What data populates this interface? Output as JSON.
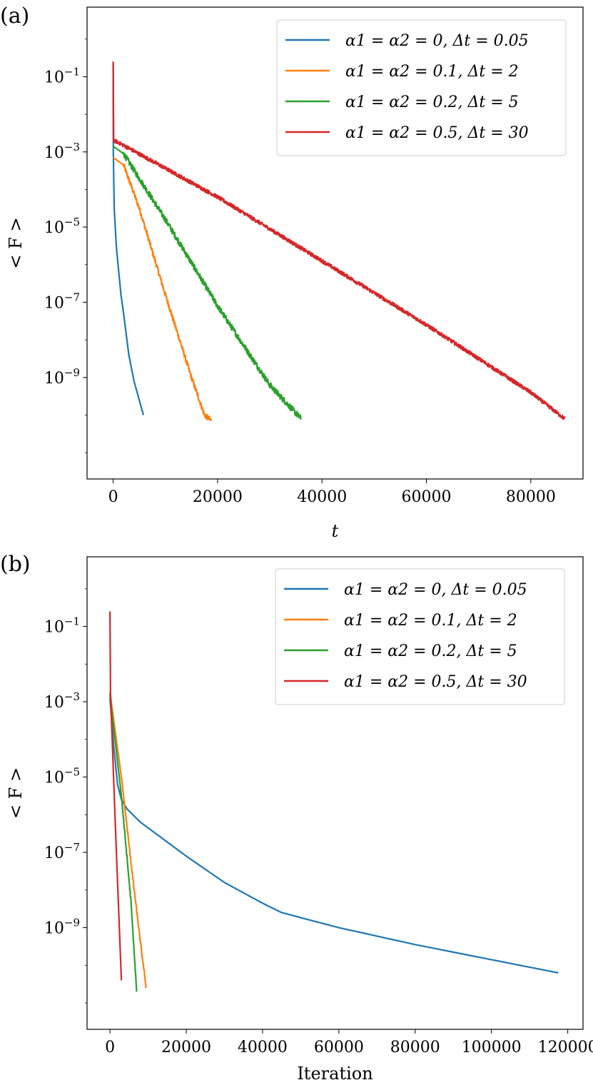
{
  "chart_data": [
    {
      "type": "line",
      "panel_label": "(a)",
      "xlabel": "t",
      "ylabel": "< F >",
      "ylog": true,
      "xlim": [
        -5000,
        90000
      ],
      "ylim_exp": [
        -11.7,
        0.85
      ],
      "xticks": [
        {
          "value": 0,
          "label": "0"
        },
        {
          "value": 20000,
          "label": "20000"
        },
        {
          "value": 40000,
          "label": "40000"
        },
        {
          "value": 60000,
          "label": "60000"
        },
        {
          "value": 80000,
          "label": "80000"
        }
      ],
      "yticks": [
        {
          "exp": -1,
          "base": "10",
          "sup": "−1"
        },
        {
          "exp": -3,
          "base": "10",
          "sup": "−3"
        },
        {
          "exp": -5,
          "base": "10",
          "sup": "−5"
        },
        {
          "exp": -7,
          "base": "10",
          "sup": "−7"
        },
        {
          "exp": -9,
          "base": "10",
          "sup": "−9"
        }
      ],
      "legend_position": "top-right",
      "series": [
        {
          "name": "α1 = α2 = 0, Δt = 0.05",
          "color": "#1f77b4",
          "noise": 0,
          "points": [
            [
              0,
              -0.6
            ],
            [
              30,
              -3.0
            ],
            [
              200,
              -4.5
            ],
            [
              600,
              -5.5
            ],
            [
              1000,
              -6.1
            ],
            [
              1500,
              -6.8
            ],
            [
              2000,
              -7.3
            ],
            [
              3000,
              -8.4
            ],
            [
              4000,
              -9.1
            ],
            [
              5000,
              -9.6
            ],
            [
              5800,
              -10.0
            ]
          ]
        },
        {
          "name": "α1 = α2 = 0.1, Δt = 2",
          "color": "#ff7f0e",
          "noise": 0.07,
          "points": [
            [
              0,
              -3.15
            ],
            [
              2000,
              -3.35
            ],
            [
              5000,
              -4.5
            ],
            [
              10000,
              -6.8
            ],
            [
              15000,
              -9.0
            ],
            [
              17500,
              -10.0
            ],
            [
              18800,
              -10.15
            ]
          ]
        },
        {
          "name": "α1 = α2 = 0.2, Δt = 5",
          "color": "#2ca02c",
          "noise": 0.08,
          "points": [
            [
              0,
              -2.85
            ],
            [
              2000,
              -3.05
            ],
            [
              10000,
              -4.8
            ],
            [
              20000,
              -7.1
            ],
            [
              30000,
              -9.2
            ],
            [
              36000,
              -10.1
            ]
          ]
        },
        {
          "name": "α1 = α2 = 0.5, Δt = 30",
          "color": "#d62728",
          "noise": 0.05,
          "points": [
            [
              0,
              -0.6
            ],
            [
              100,
              -2.7
            ],
            [
              1000,
              -2.75
            ],
            [
              20000,
              -4.2
            ],
            [
              40000,
              -5.9
            ],
            [
              60000,
              -7.6
            ],
            [
              80000,
              -9.4
            ],
            [
              86500,
              -10.1
            ]
          ]
        }
      ]
    },
    {
      "type": "line",
      "panel_label": "(b)",
      "xlabel": "Iteration",
      "ylabel": "< F >",
      "ylog": true,
      "xlim": [
        -6000,
        124000
      ],
      "ylim_exp": [
        -11.7,
        0.85
      ],
      "xticks": [
        {
          "value": 0,
          "label": "0"
        },
        {
          "value": 20000,
          "label": "20000"
        },
        {
          "value": 40000,
          "label": "40000"
        },
        {
          "value": 60000,
          "label": "60000"
        },
        {
          "value": 80000,
          "label": "80000"
        },
        {
          "value": 100000,
          "label": "100000"
        },
        {
          "value": 120000,
          "label": "120000"
        }
      ],
      "yticks": [
        {
          "exp": -1,
          "base": "10",
          "sup": "−1"
        },
        {
          "exp": -3,
          "base": "10",
          "sup": "−3"
        },
        {
          "exp": -5,
          "base": "10",
          "sup": "−5"
        },
        {
          "exp": -7,
          "base": "10",
          "sup": "−7"
        },
        {
          "exp": -9,
          "base": "10",
          "sup": "−9"
        }
      ],
      "legend_position": "top-right",
      "series": [
        {
          "name": "α1 = α2 = 0, Δt = 0.05",
          "color": "#1f77b4",
          "noise": 0,
          "points": [
            [
              0,
              -2.9
            ],
            [
              1000,
              -4.2
            ],
            [
              2000,
              -5.2
            ],
            [
              3000,
              -5.6
            ],
            [
              4500,
              -5.85
            ],
            [
              8000,
              -6.2
            ],
            [
              20000,
              -7.1
            ],
            [
              30000,
              -7.8
            ],
            [
              40000,
              -8.35
            ],
            [
              45000,
              -8.6
            ],
            [
              60000,
              -9.0
            ],
            [
              80000,
              -9.45
            ],
            [
              100000,
              -9.85
            ],
            [
              117500,
              -10.2
            ]
          ]
        },
        {
          "name": "α1 = α2 = 0.1, Δt = 2",
          "color": "#ff7f0e",
          "noise": 0.05,
          "points": [
            [
              0,
              -2.75
            ],
            [
              3000,
              -5.0
            ],
            [
              6000,
              -7.7
            ],
            [
              8000,
              -9.4
            ],
            [
              9500,
              -10.6
            ]
          ]
        },
        {
          "name": "α1 = α2 = 0.2, Δt = 5",
          "color": "#2ca02c",
          "noise": 0.05,
          "points": [
            [
              0,
              -2.8
            ],
            [
              3000,
              -5.5
            ],
            [
              5500,
              -8.3
            ],
            [
              7000,
              -10.7
            ]
          ]
        },
        {
          "name": "α1 = α2 = 0.5, Δt = 30",
          "color": "#d62728",
          "noise": 0,
          "points": [
            [
              0,
              -0.6
            ],
            [
              150,
              -2.8
            ],
            [
              1500,
              -6.5
            ],
            [
              3000,
              -10.4
            ]
          ]
        }
      ]
    }
  ]
}
